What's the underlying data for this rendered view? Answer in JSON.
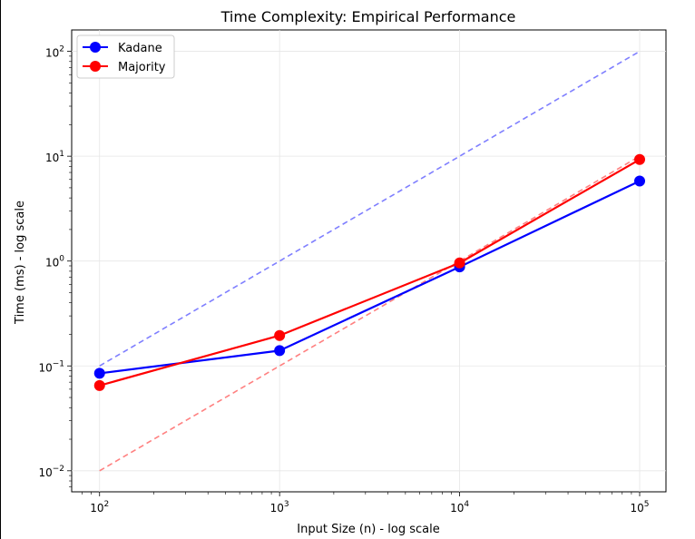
{
  "chart_data": {
    "type": "line",
    "title": "Time Complexity: Empirical Performance",
    "xlabel": "Input Size (n) - log scale",
    "ylabel": "Time (ms) - log scale",
    "x_scale": "log",
    "y_scale": "log",
    "xlim": [
      70,
      140000
    ],
    "ylim": [
      0.0063,
      160
    ],
    "grid": true,
    "legend_position": "top-left",
    "x_ticks": [
      {
        "value": 100,
        "base": "10",
        "exp": "2"
      },
      {
        "value": 1000,
        "base": "10",
        "exp": "3"
      },
      {
        "value": 10000,
        "base": "10",
        "exp": "4"
      },
      {
        "value": 100000,
        "base": "10",
        "exp": "5"
      }
    ],
    "y_ticks": [
      {
        "value": 0.01,
        "base": "10",
        "exp": "−2"
      },
      {
        "value": 0.1,
        "base": "10",
        "exp": "−1"
      },
      {
        "value": 1,
        "base": "10",
        "exp": "0"
      },
      {
        "value": 10,
        "base": "10",
        "exp": "1"
      },
      {
        "value": 100,
        "base": "10",
        "exp": "2"
      }
    ],
    "series": [
      {
        "name": "Kadane",
        "color": "#0000ff",
        "style": "solid-marker",
        "x": [
          100,
          1000,
          10000,
          100000
        ],
        "y": [
          0.085,
          0.14,
          0.88,
          5.8
        ]
      },
      {
        "name": "Majority",
        "color": "#ff0000",
        "style": "solid-marker",
        "x": [
          100,
          1000,
          10000,
          100000
        ],
        "y": [
          0.065,
          0.195,
          0.96,
          9.3
        ]
      }
    ],
    "reference_lines": [
      {
        "color": "#7f7fff",
        "style": "dashed",
        "x": [
          100,
          100000
        ],
        "y": [
          0.1,
          100
        ]
      },
      {
        "color": "#ff8080",
        "style": "dashed",
        "x": [
          100,
          100000
        ],
        "y": [
          0.01,
          10
        ]
      }
    ]
  }
}
